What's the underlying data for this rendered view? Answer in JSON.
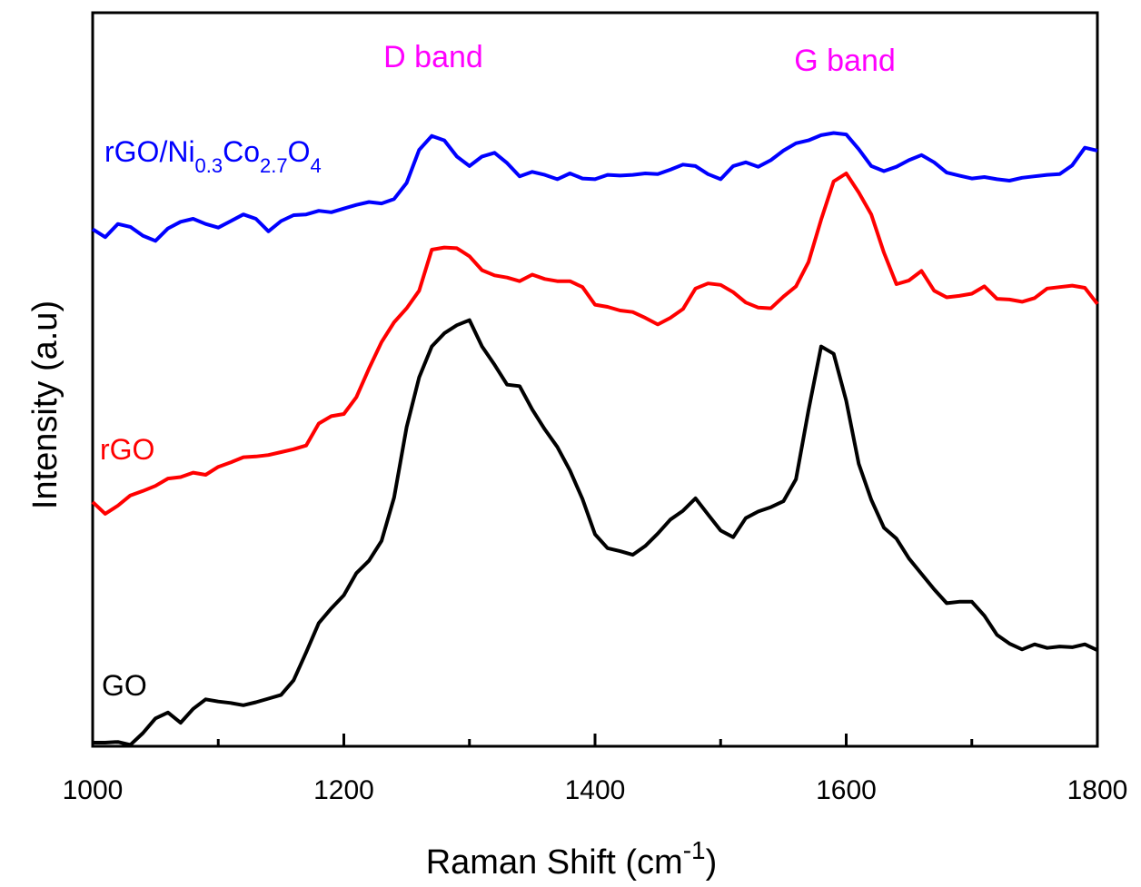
{
  "chart_data": {
    "type": "line",
    "xlabel": "Raman Shift (cm",
    "xlabel_superscript": "-1",
    "xlabel_suffix": ")",
    "ylabel": "Intensity (a.u)",
    "xlim": [
      1000,
      1800
    ],
    "ylim": [
      0,
      100
    ],
    "x_ticks": [
      "1000",
      "1200",
      "1400",
      "1600",
      "1800"
    ],
    "grid": false,
    "annotations": [
      {
        "text": "D band",
        "x": 1290,
        "color": "#ff00ff"
      },
      {
        "text": "G band",
        "x": 1600,
        "color": "#ff00ff"
      }
    ],
    "series": [
      {
        "label_parts": [
          "rGO/Ni",
          "0.3",
          "Co",
          "2.7",
          "O",
          "4"
        ],
        "color": "#0000ff",
        "x": [
          1000,
          1010,
          1020,
          1030,
          1040,
          1050,
          1060,
          1070,
          1080,
          1090,
          1100,
          1110,
          1120,
          1130,
          1140,
          1150,
          1160,
          1170,
          1180,
          1190,
          1200,
          1210,
          1220,
          1230,
          1240,
          1250,
          1260,
          1270,
          1280,
          1290,
          1300,
          1310,
          1320,
          1330,
          1340,
          1350,
          1360,
          1370,
          1380,
          1390,
          1400,
          1410,
          1420,
          1430,
          1440,
          1450,
          1460,
          1470,
          1480,
          1490,
          1500,
          1510,
          1520,
          1530,
          1540,
          1550,
          1560,
          1570,
          1580,
          1590,
          1600,
          1610,
          1620,
          1630,
          1640,
          1650,
          1660,
          1670,
          1680,
          1690,
          1700,
          1710,
          1720,
          1730,
          1740,
          1750,
          1760,
          1770,
          1780,
          1790,
          1800
        ],
        "values": [
          70.5,
          69.4,
          71.2,
          70.8,
          69.6,
          68.9,
          70.6,
          71.5,
          71.9,
          71.2,
          70.7,
          71.6,
          72.5,
          71.9,
          70.2,
          71.6,
          72.4,
          72.5,
          73.0,
          72.8,
          73.3,
          73.8,
          74.2,
          74.0,
          74.6,
          76.8,
          81.3,
          83.2,
          82.6,
          80.4,
          79.1,
          80.4,
          80.9,
          79.5,
          77.7,
          78.3,
          77.9,
          77.3,
          78.1,
          77.4,
          77.3,
          77.9,
          77.8,
          77.9,
          78.1,
          78.0,
          78.6,
          79.3,
          79.1,
          78.0,
          77.3,
          79.1,
          79.6,
          79.0,
          79.9,
          81.2,
          82.2,
          82.6,
          83.3,
          83.6,
          83.4,
          81.4,
          79.1,
          78.4,
          79.0,
          79.9,
          80.6,
          79.6,
          78.2,
          77.8,
          77.4,
          77.6,
          77.3,
          77.1,
          77.5,
          77.7,
          77.9,
          78.0,
          79.2,
          81.6,
          81.2
        ]
      },
      {
        "label_parts": [
          "rGO"
        ],
        "color": "#ff0000",
        "x": [
          1000,
          1010,
          1020,
          1030,
          1040,
          1050,
          1060,
          1070,
          1080,
          1090,
          1100,
          1110,
          1120,
          1130,
          1140,
          1150,
          1160,
          1170,
          1180,
          1190,
          1200,
          1210,
          1220,
          1230,
          1240,
          1250,
          1260,
          1270,
          1280,
          1290,
          1300,
          1310,
          1320,
          1330,
          1340,
          1350,
          1360,
          1370,
          1380,
          1390,
          1400,
          1410,
          1420,
          1430,
          1440,
          1450,
          1460,
          1470,
          1480,
          1490,
          1500,
          1510,
          1520,
          1530,
          1540,
          1550,
          1560,
          1570,
          1580,
          1590,
          1600,
          1610,
          1620,
          1630,
          1640,
          1650,
          1660,
          1670,
          1680,
          1690,
          1700,
          1710,
          1720,
          1730,
          1740,
          1750,
          1760,
          1770,
          1780,
          1790,
          1800
        ],
        "values": [
          33.3,
          31.7,
          32.8,
          34.2,
          34.8,
          35.5,
          36.5,
          36.7,
          37.3,
          37.0,
          38.1,
          38.7,
          39.4,
          39.5,
          39.7,
          40.1,
          40.5,
          41.0,
          44.0,
          45.0,
          45.3,
          47.6,
          51.5,
          55.1,
          57.8,
          59.7,
          62.1,
          67.7,
          68.0,
          67.9,
          66.8,
          64.9,
          64.2,
          63.9,
          63.4,
          64.3,
          63.7,
          63.4,
          63.4,
          62.6,
          60.2,
          59.9,
          59.4,
          59.2,
          58.4,
          57.5,
          58.4,
          59.6,
          62.4,
          63.1,
          62.9,
          61.9,
          60.5,
          59.8,
          59.7,
          61.3,
          62.7,
          66.0,
          71.8,
          77.0,
          78.1,
          75.5,
          72.5,
          67.3,
          63.0,
          63.5,
          64.8,
          62.1,
          61.2,
          61.4,
          61.7,
          62.7,
          61.0,
          60.9,
          60.6,
          61.1,
          62.4,
          62.6,
          62.8,
          62.5,
          60.3
        ]
      },
      {
        "label_parts": [
          "GO"
        ],
        "color": "#000000",
        "x": [
          1000,
          1010,
          1020,
          1030,
          1040,
          1050,
          1060,
          1070,
          1080,
          1090,
          1100,
          1110,
          1120,
          1130,
          1140,
          1150,
          1160,
          1170,
          1180,
          1190,
          1200,
          1210,
          1220,
          1230,
          1240,
          1250,
          1260,
          1270,
          1280,
          1290,
          1300,
          1310,
          1320,
          1330,
          1340,
          1350,
          1360,
          1370,
          1380,
          1390,
          1400,
          1410,
          1420,
          1430,
          1440,
          1450,
          1460,
          1470,
          1480,
          1490,
          1500,
          1510,
          1520,
          1530,
          1540,
          1550,
          1560,
          1570,
          1580,
          1590,
          1600,
          1610,
          1620,
          1630,
          1640,
          1650,
          1660,
          1670,
          1680,
          1690,
          1700,
          1710,
          1720,
          1730,
          1740,
          1750,
          1760,
          1770,
          1780,
          1790,
          1800
        ],
        "values": [
          0.5,
          0.5,
          0.6,
          0.2,
          1.8,
          3.8,
          4.6,
          3.2,
          5.1,
          6.4,
          6.1,
          5.9,
          5.6,
          6.0,
          6.5,
          7.0,
          9.0,
          12.8,
          16.8,
          18.8,
          20.6,
          23.6,
          25.3,
          28.0,
          33.9,
          43.5,
          50.3,
          54.5,
          56.3,
          57.4,
          58.1,
          54.5,
          52.0,
          49.3,
          49.1,
          45.9,
          43.2,
          40.8,
          37.6,
          33.7,
          28.9,
          27.0,
          26.6,
          26.1,
          27.3,
          29.0,
          30.9,
          32.1,
          33.8,
          31.6,
          29.4,
          28.5,
          31.1,
          32.0,
          32.6,
          33.4,
          36.4,
          45.8,
          54.5,
          53.5,
          47.1,
          38.5,
          33.6,
          29.8,
          28.3,
          25.6,
          23.5,
          21.4,
          19.5,
          19.7,
          19.7,
          17.8,
          15.2,
          14.0,
          13.2,
          13.9,
          13.4,
          13.6,
          13.5,
          13.9,
          13.1
        ]
      }
    ]
  }
}
